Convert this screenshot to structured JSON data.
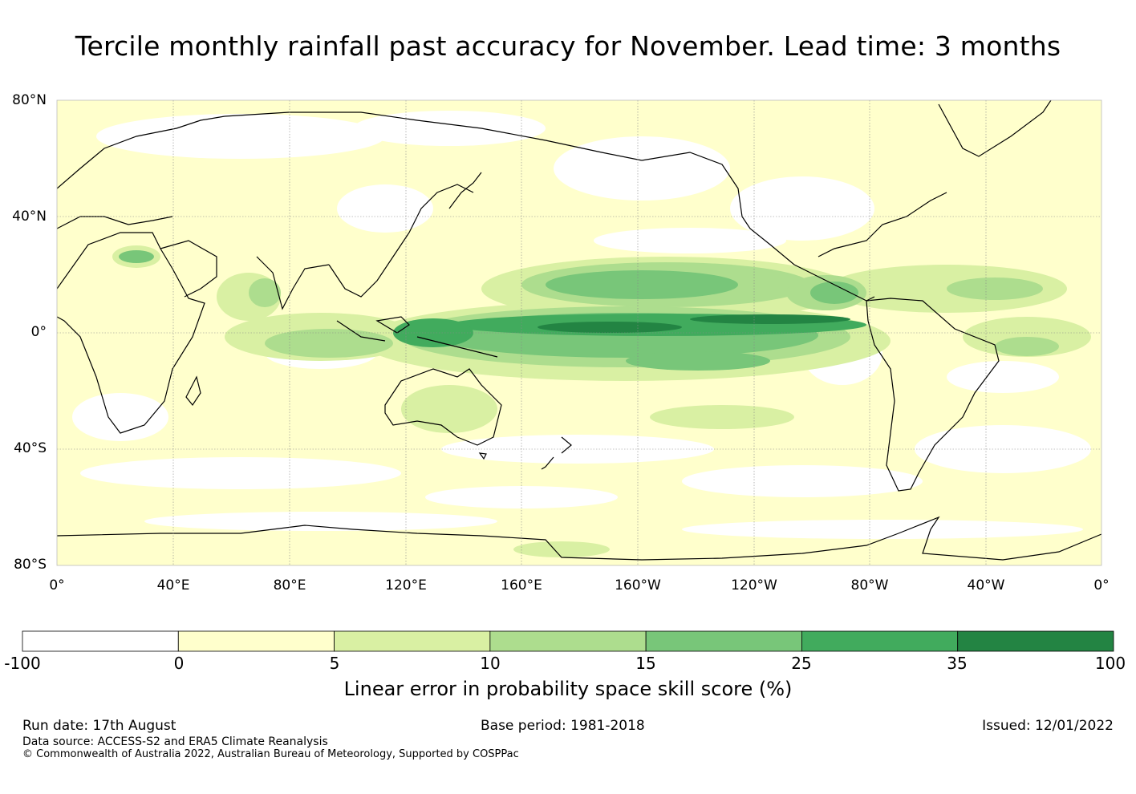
{
  "title": "Tercile monthly rainfall past accuracy for November. Lead time: 3 months",
  "map": {
    "lat_labels": [
      "80°N",
      "40°N",
      "0°",
      "40°S",
      "80°S"
    ],
    "lon_labels": [
      "0°",
      "40°E",
      "80°E",
      "120°E",
      "160°E",
      "160°W",
      "120°W",
      "80°W",
      "40°W",
      "0°"
    ],
    "extent": {
      "lon": [
        0,
        360
      ],
      "lat": [
        -80,
        80
      ]
    }
  },
  "colorbar": {
    "ticks": [
      "-100",
      "0",
      "5",
      "10",
      "15",
      "25",
      "35",
      "100"
    ],
    "colors": [
      "#ffffff",
      "#ffffcc",
      "#d9f0a3",
      "#addd8e",
      "#78c679",
      "#41ab5d",
      "#238443"
    ],
    "label": "Linear error in probability space skill score (%)"
  },
  "footer": {
    "run_date": "Run date: 17th August",
    "base_period": "Base period: 1981-2018",
    "issued": "Issued: 12/01/2022",
    "data_source": "Data source: ACCESS-S2 and ERA5 Climate Reanalysis",
    "copyright": "© Commonwealth of Australia 2022, Australian Bureau of Meteorology, Supported by COSPPac"
  }
}
